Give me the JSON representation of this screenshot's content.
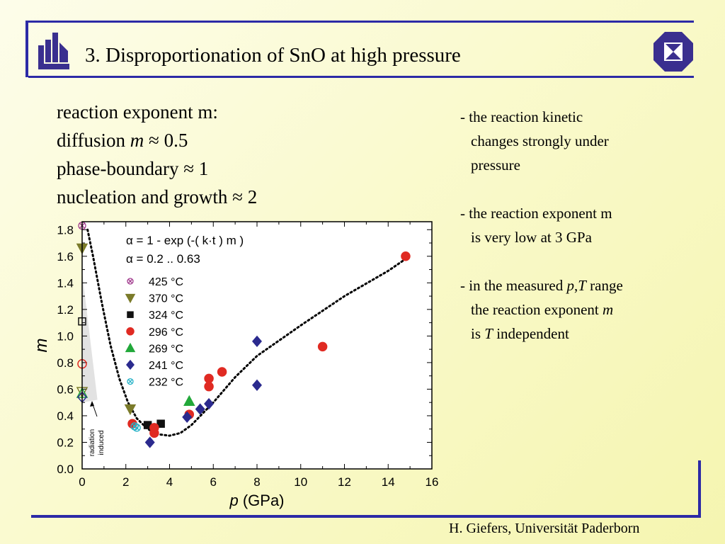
{
  "header": {
    "title": "3. Disproportionation of SnO at high pressure"
  },
  "intro": {
    "line1": "reaction exponent m:",
    "line2_text": "diffusion ",
    "line2_var": "m",
    "line2_val": " ≈ 0.5",
    "line3": "phase-boundary ≈ 1",
    "line4": "nucleation and growth ≈ 2"
  },
  "notes": {
    "n1": [
      "- the reaction kinetic",
      "changes strongly under",
      "pressure"
    ],
    "n2": [
      "- the reaction exponent m",
      "is very low at 3 GPa"
    ],
    "n3": {
      "l1a": "- in the measured ",
      "l1p": "p",
      "l1comma": ",",
      "l1t": "T",
      "l1b": " range",
      "l2a": "the reaction exponent ",
      "l2m": "m",
      "l3a": "is ",
      "l3t": "T",
      "l3b": " independent"
    }
  },
  "footer": "H. Giefers, Universität Paderborn",
  "colors": {
    "frame": "#2c2aa6",
    "logo": "#3a2f8f",
    "c425": "#a23d8f",
    "c370": "#7b7b2a",
    "c324": "#111111",
    "c296": "#e02a22",
    "c269": "#22a83a",
    "c241": "#2b2a8e",
    "c232": "#2ab3c8"
  },
  "chart_data": {
    "type": "scatter",
    "xlabel_var": "p",
    "xlabel_unit": "(GPa)",
    "ylabel": "m",
    "xlim": [
      0,
      16
    ],
    "ylim": [
      0,
      1.86
    ],
    "xticks": [
      0,
      2,
      4,
      6,
      8,
      10,
      12,
      14,
      16
    ],
    "yticks": [
      0.0,
      0.2,
      0.4,
      0.6,
      0.8,
      1.0,
      1.2,
      1.4,
      1.6,
      1.8
    ],
    "eq1": "α = 1 -  exp  (-( k·t ) m )",
    "eq2": "α = 0.2 .. 0.63",
    "annotation": [
      "radiation",
      "induced"
    ],
    "series": [
      {
        "name": "425 °C",
        "marker": "crosscircle",
        "color": "#a23d8f",
        "open": true,
        "points": [
          [
            0.0,
            1.83
          ]
        ]
      },
      {
        "name": "370 °C",
        "marker": "tridown",
        "color": "#7b7b2a",
        "points": [
          [
            0.0,
            1.66
          ],
          [
            2.2,
            0.45
          ]
        ],
        "open_points": [
          [
            0.0,
            0.58
          ]
        ]
      },
      {
        "name": "324 °C",
        "marker": "square",
        "color": "#111111",
        "points": [
          [
            3.0,
            0.33
          ],
          [
            3.6,
            0.34
          ]
        ],
        "open_points": [
          [
            0.0,
            1.11
          ]
        ]
      },
      {
        "name": "296 °C",
        "marker": "circle",
        "color": "#e02a22",
        "points": [
          [
            2.3,
            0.34
          ],
          [
            3.3,
            0.31
          ],
          [
            3.3,
            0.27
          ],
          [
            4.9,
            0.41
          ],
          [
            5.8,
            0.62
          ],
          [
            5.8,
            0.68
          ],
          [
            6.4,
            0.73
          ],
          [
            11.0,
            0.92
          ],
          [
            14.8,
            1.6
          ]
        ],
        "open_points": [
          [
            0.0,
            0.79
          ]
        ]
      },
      {
        "name": "269 °C",
        "marker": "triup",
        "color": "#22a83a",
        "points": [
          [
            4.9,
            0.51
          ]
        ],
        "open_points": [
          [
            0.0,
            0.57
          ]
        ]
      },
      {
        "name": "241 °C",
        "marker": "diamond",
        "color": "#2b2a8e",
        "points": [
          [
            3.1,
            0.2
          ],
          [
            4.8,
            0.39
          ],
          [
            5.4,
            0.45
          ],
          [
            5.8,
            0.49
          ],
          [
            8.0,
            0.96
          ],
          [
            8.0,
            0.63
          ]
        ],
        "open_points": [
          [
            0.0,
            0.54
          ]
        ]
      },
      {
        "name": "232 °C",
        "marker": "crosscircle",
        "color": "#2ab3c8",
        "open": true,
        "points": [
          [
            2.4,
            0.32
          ],
          [
            2.5,
            0.31
          ]
        ]
      }
    ],
    "fit_curve": [
      [
        0.25,
        1.8
      ],
      [
        0.5,
        1.6
      ],
      [
        0.9,
        1.25
      ],
      [
        1.3,
        0.93
      ],
      [
        1.7,
        0.68
      ],
      [
        2.1,
        0.5
      ],
      [
        2.5,
        0.38
      ],
      [
        3.0,
        0.3
      ],
      [
        3.5,
        0.26
      ],
      [
        4.0,
        0.25
      ],
      [
        4.5,
        0.27
      ],
      [
        5.0,
        0.33
      ],
      [
        6.0,
        0.5
      ],
      [
        7.0,
        0.69
      ],
      [
        8.0,
        0.85
      ],
      [
        10.0,
        1.08
      ],
      [
        12.0,
        1.3
      ],
      [
        14.0,
        1.49
      ],
      [
        14.8,
        1.58
      ]
    ]
  }
}
